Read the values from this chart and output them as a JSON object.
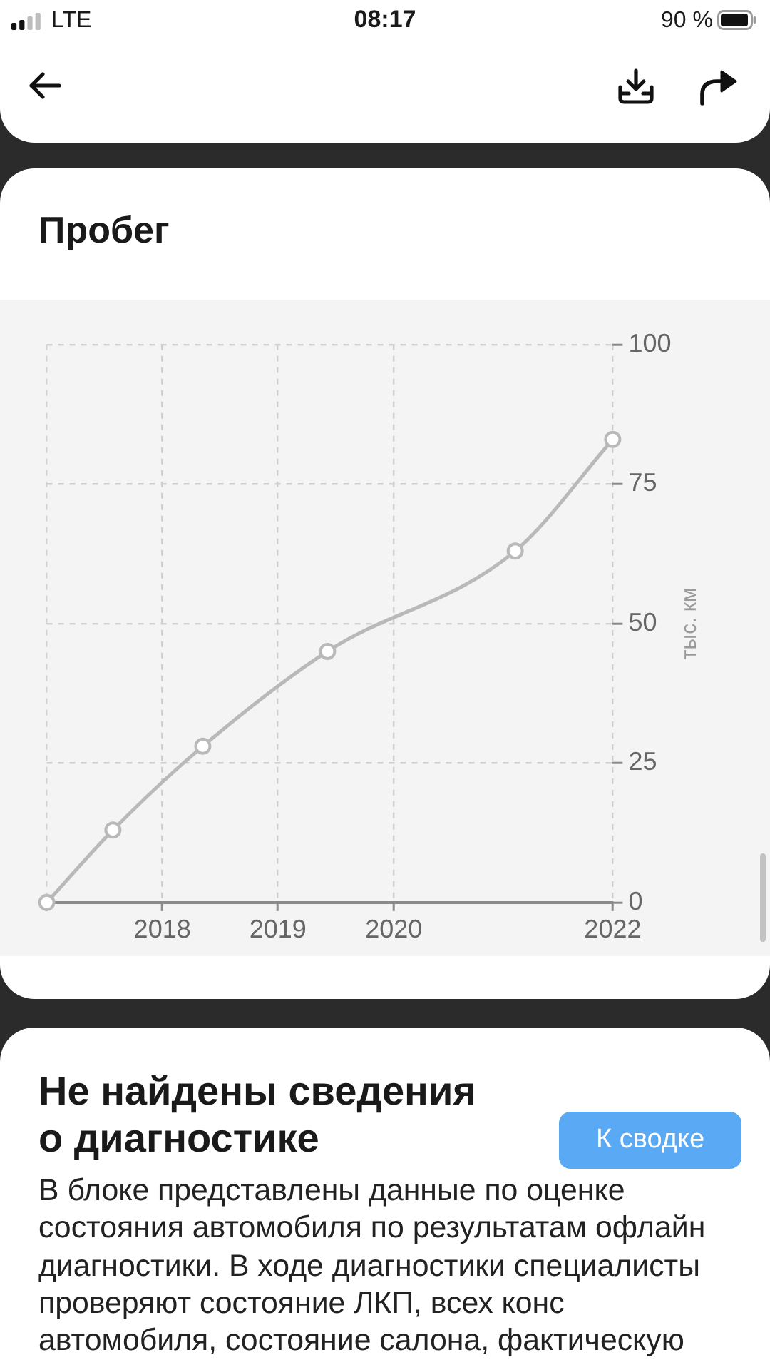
{
  "chart_data": {
    "type": "line",
    "title": "Пробег",
    "ylabel": "тыс. км",
    "x": [
      "2017-03-01",
      "2017-09-26",
      "2018-07-07",
      "2019-08-05",
      "2021-03-20",
      "2022-01-22"
    ],
    "values": [
      0,
      13,
      28,
      45,
      63,
      83
    ],
    "color": "#b9b9b9",
    "xlim": [
      "2017-03-01",
      "2022-01-22"
    ],
    "xticks": [
      {
        "value": "2017-03-01",
        "label": null
      },
      {
        "value": "2018-03-01",
        "label": "2018"
      },
      {
        "value": "2019-03-01",
        "label": "2019"
      },
      {
        "value": "2020-03-01",
        "label": "2020"
      },
      {
        "value": "2022-01-22",
        "label": "2022"
      }
    ],
    "ylim": [
      0,
      100
    ],
    "yticks": [
      0,
      25,
      50,
      75,
      100
    ],
    "grid": true,
    "marker": "circle",
    "line_style": "solid",
    "annotations": [
      "LTE",
      "08:17",
      "90 %",
      "Не найдены сведения о диагностике",
      "В блоке представлены данные по оценке состояния автомобиля по результатам офлайн диагностики. В ходе диагностики специалисты проверяют состояние ЛКП, всех конс",
      "автомобиля, состояние салона, фактическую",
      "К сводке"
    ]
  }
}
